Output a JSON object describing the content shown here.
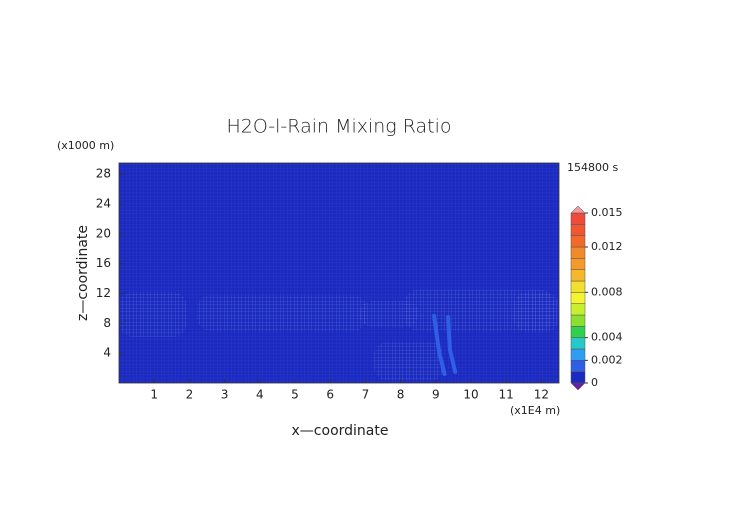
{
  "chart_data": {
    "type": "contour",
    "title": "H2O-l-Rain Mixing Ratio",
    "x_label": "x—coordinate",
    "y_label": "z—coordinate",
    "x_unit": "(x1E4 m)",
    "y_unit": "(x1000 m)",
    "time_label": "154800 s",
    "background_color": "#1c2bbf",
    "xlim": [
      0,
      12.5
    ],
    "ylim": [
      0,
      29.5
    ],
    "xticks": [
      1,
      2,
      3,
      4,
      5,
      6,
      7,
      8,
      9,
      10,
      11,
      12
    ],
    "yticks": [
      4,
      8,
      12,
      16,
      20,
      24,
      28
    ],
    "colorbar": {
      "levels": [
        0,
        0.001,
        0.002,
        0.003,
        0.004,
        0.005,
        0.006,
        0.007,
        0.008,
        0.009,
        0.01,
        0.011,
        0.012,
        0.013,
        0.014,
        0.015
      ],
      "colors": [
        "#1c2bbf",
        "#2f5fe6",
        "#2f9ef2",
        "#27c8c8",
        "#2fcf4f",
        "#8be02f",
        "#c8ef2f",
        "#f5f52f",
        "#f2df2f",
        "#f5b82a",
        "#f59a2a",
        "#f28a2a",
        "#f26a2a",
        "#f2552f",
        "#ef4a3a"
      ],
      "under_color": "#6a1fa0",
      "over_color": "#f29a9a",
      "ticks": [
        0,
        0.002,
        0.004,
        0.008,
        0.012,
        0.015
      ]
    }
  }
}
